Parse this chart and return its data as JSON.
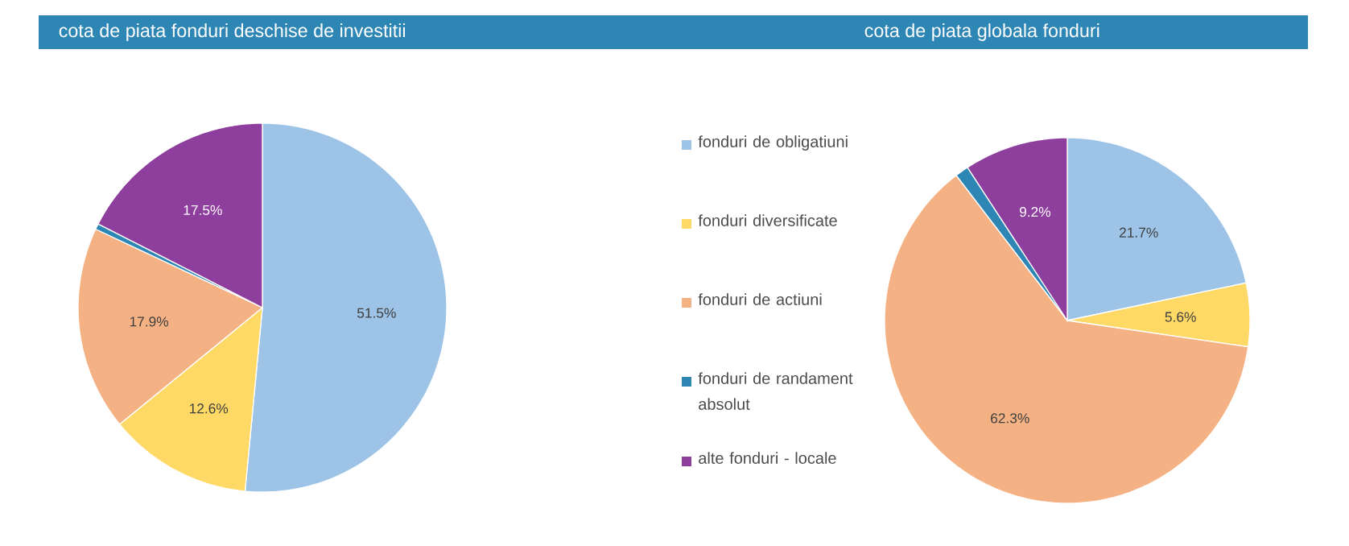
{
  "chart_data": [
    {
      "type": "pie",
      "title": "cota de piata fonduri deschise de investitii",
      "categories": [
        "fonduri de obligatiuni",
        "fonduri diversificate",
        "fonduri de actiuni",
        "fonduri de randament absolut",
        "alte fonduri - locale"
      ],
      "values": [
        51.5,
        12.6,
        17.9,
        0.5,
        17.5
      ],
      "colors": [
        "#9dc3e6",
        "#ffd966",
        "#f4b183",
        "#2e86b5",
        "#8e3f9e"
      ],
      "value_labels": [
        "51.5%",
        "12.6%",
        "17.9%",
        null,
        "17.5%"
      ],
      "legend": "right"
    },
    {
      "type": "pie",
      "title": "cota de piata globala fonduri",
      "categories": [
        null,
        null,
        null,
        null,
        null
      ],
      "values": [
        21.7,
        5.6,
        62.3,
        1.2,
        9.2
      ],
      "colors": [
        "#9dc3e6",
        "#ffd966",
        "#f4b183",
        "#2e86b5",
        "#8e3f9e"
      ],
      "value_labels": [
        "21.7%",
        "5.6%",
        "62.3%",
        null,
        "9.2%"
      ]
    }
  ]
}
